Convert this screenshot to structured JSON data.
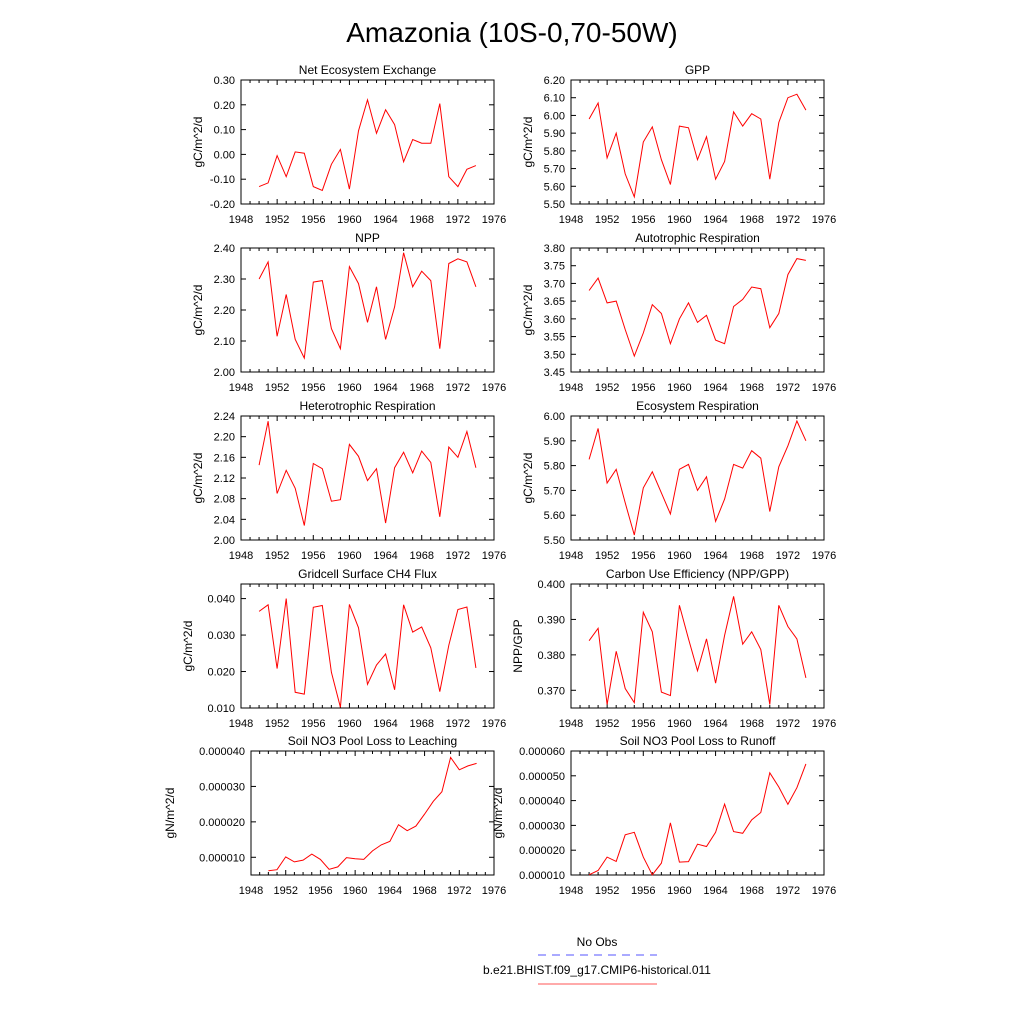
{
  "page": {
    "title": "Amazonia (10S-0,70-50W)"
  },
  "legend": {
    "entries": [
      {
        "label": "No Obs",
        "color": "#5555ff",
        "style": "dashed"
      },
      {
        "label": "b.e21.BHIST.f09_g17.CMIP6-historical.011",
        "color": "#ff5555",
        "style": "solid"
      }
    ]
  },
  "chart_data": [
    {
      "type": "line",
      "title": "Net Ecosystem Exchange",
      "ylabel": "gC/m^2/d",
      "xlim": [
        1948,
        1976
      ],
      "xticks": [
        "1948",
        "1952",
        "1956",
        "1960",
        "1964",
        "1968",
        "1972",
        "1976"
      ],
      "ylim": [
        -0.2,
        0.3
      ],
      "yticks": [
        "-0.20",
        "-0.10",
        "0.00",
        "0.10",
        "0.20",
        "0.30"
      ],
      "series": [
        {
          "color": "#ff0000",
          "x": [
            1950,
            1951,
            1952,
            1953,
            1954,
            1955,
            1956,
            1957,
            1958,
            1959,
            1960,
            1961,
            1962,
            1963,
            1964,
            1965,
            1966,
            1967,
            1968,
            1969,
            1970,
            1971,
            1972,
            1973,
            1974
          ],
          "y": [
            -0.13,
            -0.115,
            -0.005,
            -0.09,
            0.01,
            0.005,
            -0.13,
            -0.145,
            -0.04,
            0.02,
            -0.14,
            0.095,
            0.22,
            0.085,
            0.18,
            0.12,
            -0.03,
            0.06,
            0.045,
            0.045,
            0.205,
            -0.09,
            -0.13,
            -0.06,
            -0.045
          ]
        }
      ]
    },
    {
      "type": "line",
      "title": "GPP",
      "ylabel": "gC/m^2/d",
      "xlim": [
        1948,
        1976
      ],
      "xticks": [
        "1948",
        "1952",
        "1956",
        "1960",
        "1964",
        "1968",
        "1972",
        "1976"
      ],
      "ylim": [
        5.5,
        6.2
      ],
      "yticks": [
        "5.50",
        "5.60",
        "5.70",
        "5.80",
        "5.90",
        "6.00",
        "6.10",
        "6.20"
      ],
      "series": [
        {
          "color": "#ff0000",
          "x": [
            1950,
            1951,
            1952,
            1953,
            1954,
            1955,
            1956,
            1957,
            1958,
            1959,
            1960,
            1961,
            1962,
            1963,
            1964,
            1965,
            1966,
            1967,
            1968,
            1969,
            1970,
            1971,
            1972,
            1973,
            1974
          ],
          "y": [
            5.98,
            6.07,
            5.76,
            5.9,
            5.67,
            5.54,
            5.85,
            5.935,
            5.75,
            5.61,
            5.94,
            5.93,
            5.75,
            5.88,
            5.64,
            5.74,
            6.02,
            5.94,
            6.01,
            5.98,
            5.64,
            5.96,
            6.1,
            6.12,
            6.03
          ]
        }
      ]
    },
    {
      "type": "line",
      "title": "NPP",
      "ylabel": "gC/m^2/d",
      "xlim": [
        1948,
        1976
      ],
      "xticks": [
        "1948",
        "1952",
        "1956",
        "1960",
        "1964",
        "1968",
        "1972",
        "1976"
      ],
      "ylim": [
        2.0,
        2.4
      ],
      "yticks": [
        "2.00",
        "2.10",
        "2.20",
        "2.30",
        "2.40"
      ],
      "series": [
        {
          "color": "#ff0000",
          "x": [
            1950,
            1951,
            1952,
            1953,
            1954,
            1955,
            1956,
            1957,
            1958,
            1959,
            1960,
            1961,
            1962,
            1963,
            1964,
            1965,
            1966,
            1967,
            1968,
            1969,
            1970,
            1971,
            1972,
            1973,
            1974
          ],
          "y": [
            2.3,
            2.355,
            2.115,
            2.25,
            2.105,
            2.045,
            2.29,
            2.295,
            2.14,
            2.075,
            2.34,
            2.285,
            2.16,
            2.275,
            2.105,
            2.21,
            2.385,
            2.275,
            2.325,
            2.295,
            2.075,
            2.35,
            2.365,
            2.355,
            2.275
          ]
        }
      ]
    },
    {
      "type": "line",
      "title": "Autotrophic Respiration",
      "ylabel": "gC/m^2/d",
      "xlim": [
        1948,
        1976
      ],
      "xticks": [
        "1948",
        "1952",
        "1956",
        "1960",
        "1964",
        "1968",
        "1972",
        "1976"
      ],
      "ylim": [
        3.45,
        3.8
      ],
      "yticks": [
        "3.45",
        "3.50",
        "3.55",
        "3.60",
        "3.65",
        "3.70",
        "3.75",
        "3.80"
      ],
      "series": [
        {
          "color": "#ff0000",
          "x": [
            1950,
            1951,
            1952,
            1953,
            1954,
            1955,
            1956,
            1957,
            1958,
            1959,
            1960,
            1961,
            1962,
            1963,
            1964,
            1965,
            1966,
            1967,
            1968,
            1969,
            1970,
            1971,
            1972,
            1973,
            1974
          ],
          "y": [
            3.68,
            3.715,
            3.645,
            3.65,
            3.57,
            3.495,
            3.56,
            3.64,
            3.615,
            3.53,
            3.6,
            3.645,
            3.59,
            3.61,
            3.54,
            3.53,
            3.635,
            3.655,
            3.69,
            3.685,
            3.575,
            3.615,
            3.725,
            3.77,
            3.765
          ]
        }
      ]
    },
    {
      "type": "line",
      "title": "Heterotrophic Respiration",
      "ylabel": "gC/m^2/d",
      "xlim": [
        1948,
        1976
      ],
      "xticks": [
        "1948",
        "1952",
        "1956",
        "1960",
        "1964",
        "1968",
        "1972",
        "1976"
      ],
      "ylim": [
        2.0,
        2.24
      ],
      "yticks": [
        "2.00",
        "2.04",
        "2.08",
        "2.12",
        "2.16",
        "2.20",
        "2.24"
      ],
      "series": [
        {
          "color": "#ff0000",
          "x": [
            1950,
            1951,
            1952,
            1953,
            1954,
            1955,
            1956,
            1957,
            1958,
            1959,
            1960,
            1961,
            1962,
            1963,
            1964,
            1965,
            1966,
            1967,
            1968,
            1969,
            1970,
            1971,
            1972,
            1973,
            1974
          ],
          "y": [
            2.145,
            2.23,
            2.09,
            2.135,
            2.1,
            2.028,
            2.148,
            2.138,
            2.075,
            2.078,
            2.185,
            2.162,
            2.115,
            2.138,
            2.033,
            2.14,
            2.17,
            2.13,
            2.172,
            2.15,
            2.045,
            2.18,
            2.16,
            2.21,
            2.14
          ]
        }
      ]
    },
    {
      "type": "line",
      "title": "Ecosystem Respiration",
      "ylabel": "gC/m^2/d",
      "xlim": [
        1948,
        1976
      ],
      "xticks": [
        "1948",
        "1952",
        "1956",
        "1960",
        "1964",
        "1968",
        "1972",
        "1976"
      ],
      "ylim": [
        5.5,
        6.0
      ],
      "yticks": [
        "5.50",
        "5.60",
        "5.70",
        "5.80",
        "5.90",
        "6.00"
      ],
      "series": [
        {
          "color": "#ff0000",
          "x": [
            1950,
            1951,
            1952,
            1953,
            1954,
            1955,
            1956,
            1957,
            1958,
            1959,
            1960,
            1961,
            1962,
            1963,
            1964,
            1965,
            1966,
            1967,
            1968,
            1969,
            1970,
            1971,
            1972,
            1973,
            1974
          ],
          "y": [
            5.825,
            5.95,
            5.73,
            5.785,
            5.65,
            5.52,
            5.71,
            5.775,
            5.69,
            5.605,
            5.785,
            5.805,
            5.7,
            5.755,
            5.575,
            5.665,
            5.805,
            5.79,
            5.86,
            5.83,
            5.615,
            5.795,
            5.88,
            5.98,
            5.9
          ]
        }
      ]
    },
    {
      "type": "line",
      "title": "Gridcell Surface CH4 Flux",
      "ylabel": "gC/m^2/d",
      "xlim": [
        1948,
        1976
      ],
      "xticks": [
        "1948",
        "1952",
        "1956",
        "1960",
        "1964",
        "1968",
        "1972",
        "1976"
      ],
      "ylim": [
        0.01,
        0.044
      ],
      "yticks": [
        "0.010",
        "0.020",
        "0.030",
        "0.040"
      ],
      "series": [
        {
          "color": "#ff0000",
          "x": [
            1950,
            1951,
            1952,
            1953,
            1954,
            1955,
            1956,
            1957,
            1958,
            1959,
            1960,
            1961,
            1962,
            1963,
            1964,
            1965,
            1966,
            1967,
            1968,
            1969,
            1970,
            1971,
            1972,
            1973,
            1974
          ],
          "y": [
            0.0365,
            0.0383,
            0.0208,
            0.04,
            0.0143,
            0.0138,
            0.0376,
            0.0381,
            0.0198,
            0.0102,
            0.0384,
            0.032,
            0.0165,
            0.0218,
            0.0248,
            0.015,
            0.0383,
            0.0308,
            0.0322,
            0.0265,
            0.0145,
            0.0272,
            0.037,
            0.0377,
            0.021
          ]
        }
      ]
    },
    {
      "type": "line",
      "title": "Carbon Use Efficiency (NPP/GPP)",
      "ylabel": "NPP/GPP",
      "xlim": [
        1948,
        1976
      ],
      "xticks": [
        "1948",
        "1952",
        "1956",
        "1960",
        "1964",
        "1968",
        "1972",
        "1976"
      ],
      "ylim": [
        0.365,
        0.4
      ],
      "yticks": [
        "0.370",
        "0.380",
        "0.390",
        "0.400"
      ],
      "series": [
        {
          "color": "#ff0000",
          "x": [
            1950,
            1951,
            1952,
            1953,
            1954,
            1955,
            1956,
            1957,
            1958,
            1959,
            1960,
            1961,
            1962,
            1963,
            1964,
            1965,
            1966,
            1967,
            1968,
            1969,
            1970,
            1971,
            1972,
            1973,
            1974
          ],
          "y": [
            0.384,
            0.3875,
            0.366,
            0.381,
            0.3705,
            0.3665,
            0.392,
            0.3865,
            0.3695,
            0.3685,
            0.394,
            0.3845,
            0.3755,
            0.3845,
            0.372,
            0.3855,
            0.3965,
            0.383,
            0.3865,
            0.3815,
            0.366,
            0.394,
            0.388,
            0.3845,
            0.3735
          ]
        }
      ]
    },
    {
      "type": "line",
      "title": "Soil NO3 Pool Loss to Leaching",
      "ylabel": "gN/m^2/d",
      "xlim": [
        1948,
        1976
      ],
      "xticks": [
        "1948",
        "1952",
        "1956",
        "1960",
        "1964",
        "1968",
        "1972",
        "1976"
      ],
      "ylim": [
        5e-06,
        4e-05
      ],
      "yticks": [
        "0.000010",
        "0.000020",
        "0.000030",
        "0.000040"
      ],
      "series": [
        {
          "color": "#ff0000",
          "x": [
            1950,
            1951,
            1952,
            1953,
            1954,
            1955,
            1956,
            1957,
            1958,
            1959,
            1960,
            1961,
            1962,
            1963,
            1964,
            1965,
            1966,
            1967,
            1968,
            1969,
            1970,
            1971,
            1972,
            1973,
            1974
          ],
          "y": [
            6.2e-06,
            6.5e-06,
            1.01e-05,
            8.7e-06,
            9.2e-06,
            1.09e-05,
            9.4e-06,
            6.6e-06,
            7.3e-06,
            9.9e-06,
            9.6e-06,
            9.4e-06,
            1.18e-05,
            1.35e-05,
            1.45e-05,
            1.92e-05,
            1.75e-05,
            1.88e-05,
            2.22e-05,
            2.58e-05,
            2.85e-05,
            3.82e-05,
            3.47e-05,
            3.58e-05,
            3.65e-05
          ]
        }
      ]
    },
    {
      "type": "line",
      "title": "Soil NO3 Pool Loss to Runoff",
      "ylabel": "gN/m^2/d",
      "xlim": [
        1948,
        1976
      ],
      "xticks": [
        "1948",
        "1952",
        "1956",
        "1960",
        "1964",
        "1968",
        "1972",
        "1976"
      ],
      "ylim": [
        1e-05,
        6e-05
      ],
      "yticks": [
        "0.000010",
        "0.000020",
        "0.000030",
        "0.000040",
        "0.000050",
        "0.000060"
      ],
      "series": [
        {
          "color": "#ff0000",
          "x": [
            1950,
            1951,
            1952,
            1953,
            1954,
            1955,
            1956,
            1957,
            1958,
            1959,
            1960,
            1961,
            1962,
            1963,
            1964,
            1965,
            1966,
            1967,
            1968,
            1969,
            1970,
            1971,
            1972,
            1973,
            1974
          ],
          "y": [
            1.01e-05,
            1.18e-05,
            1.72e-05,
            1.55e-05,
            2.62e-05,
            2.72e-05,
            1.72e-05,
            1.01e-05,
            1.48e-05,
            3.1e-05,
            1.52e-05,
            1.54e-05,
            2.24e-05,
            2.15e-05,
            2.72e-05,
            3.86e-05,
            2.75e-05,
            2.68e-05,
            3.22e-05,
            3.52e-05,
            5.12e-05,
            4.55e-05,
            3.85e-05,
            4.52e-05,
            5.48e-05
          ]
        }
      ]
    }
  ]
}
